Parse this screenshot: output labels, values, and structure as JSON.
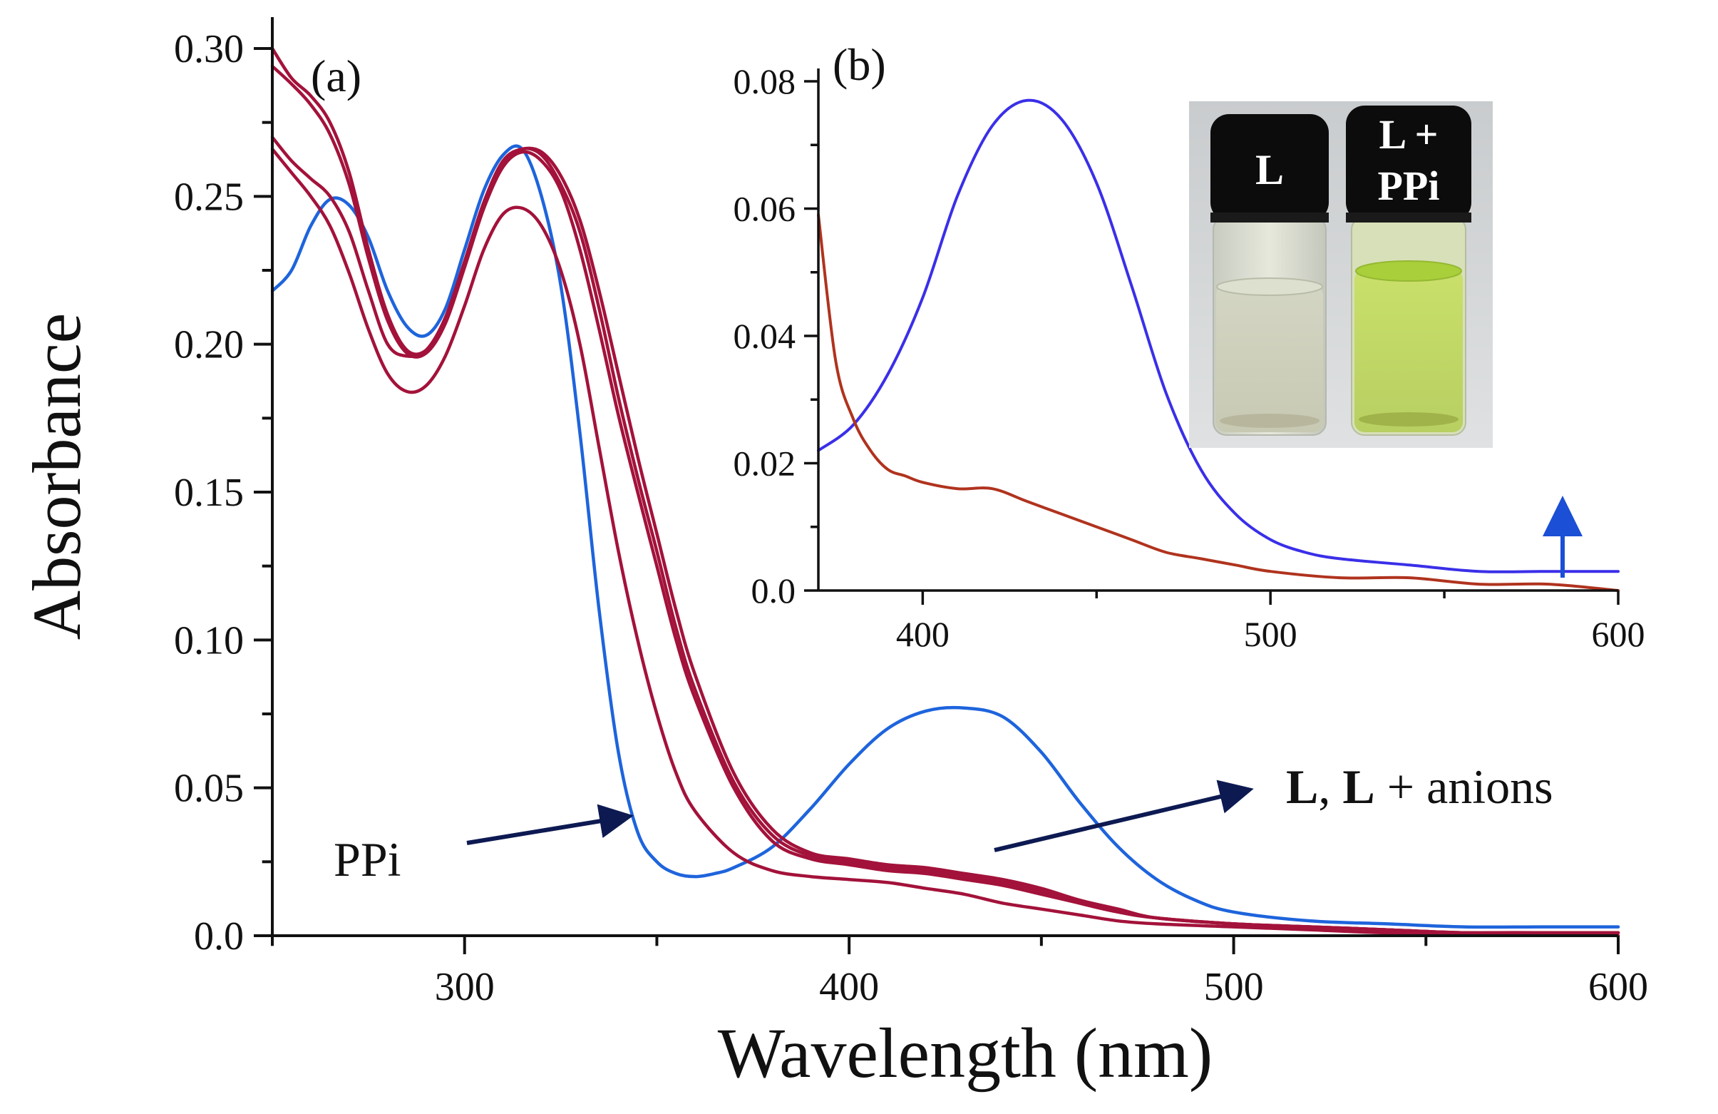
{
  "colors": {
    "ppi": "#1e64dc",
    "anions": "#a3123a",
    "inset_ppi": "#3a2fe8",
    "inset_l": "#b0331e",
    "arrow": "#0d1a52",
    "up_arrow": "#1a4fd6",
    "axis": "#111111"
  },
  "chart_data": [
    {
      "id": "panel-a",
      "panel_label": "(a)",
      "type": "line",
      "xlabel": "Wavelength (nm)",
      "ylabel": "Absorbance",
      "xlim": [
        250,
        600
      ],
      "ylim": [
        0,
        0.3
      ],
      "xticks": [
        300,
        400,
        500,
        600
      ],
      "xtick_labels": [
        "300",
        "400",
        "500",
        "600"
      ],
      "yticks": [
        0,
        0.05,
        0.1,
        0.15,
        0.2,
        0.25,
        0.3
      ],
      "ytick_labels": [
        "0.0",
        "0.05",
        "0.10",
        "0.15",
        "0.20",
        "0.25",
        "0.30"
      ],
      "annotations": [
        {
          "name": "ppi-annotation",
          "text": "PPi"
        },
        {
          "name": "anions-annotation",
          "text_bold": "L",
          "text_sep": ", ",
          "text_bold2": "L",
          "text_rest": " + anions"
        }
      ],
      "series": [
        {
          "name": "PPi",
          "color_key": "ppi",
          "x": [
            250,
            255,
            260,
            265,
            270,
            275,
            280,
            285,
            290,
            295,
            300,
            305,
            310,
            315,
            320,
            325,
            330,
            335,
            340,
            345,
            350,
            355,
            360,
            365,
            370,
            380,
            390,
            400,
            410,
            420,
            430,
            440,
            450,
            460,
            470,
            480,
            490,
            500,
            520,
            540,
            560,
            580,
            600
          ],
          "y": [
            0.218,
            0.225,
            0.24,
            0.249,
            0.247,
            0.236,
            0.218,
            0.206,
            0.203,
            0.212,
            0.232,
            0.252,
            0.264,
            0.266,
            0.25,
            0.22,
            0.17,
            0.11,
            0.062,
            0.035,
            0.025,
            0.021,
            0.02,
            0.021,
            0.023,
            0.03,
            0.043,
            0.058,
            0.07,
            0.076,
            0.077,
            0.074,
            0.062,
            0.045,
            0.03,
            0.019,
            0.012,
            0.008,
            0.005,
            0.004,
            0.003,
            0.003,
            0.003
          ]
        },
        {
          "name": "L + anion 1",
          "color_key": "anions",
          "x": [
            250,
            255,
            260,
            265,
            270,
            275,
            280,
            285,
            290,
            295,
            300,
            305,
            310,
            315,
            320,
            325,
            330,
            335,
            340,
            345,
            350,
            355,
            360,
            370,
            380,
            390,
            400,
            410,
            420,
            430,
            440,
            450,
            460,
            470,
            480,
            500,
            520,
            540,
            560,
            580,
            600
          ],
          "y": [
            0.3,
            0.29,
            0.284,
            0.275,
            0.258,
            0.232,
            0.21,
            0.198,
            0.198,
            0.208,
            0.227,
            0.246,
            0.26,
            0.265,
            0.262,
            0.252,
            0.232,
            0.205,
            0.176,
            0.15,
            0.125,
            0.1,
            0.08,
            0.05,
            0.032,
            0.026,
            0.024,
            0.022,
            0.021,
            0.019,
            0.017,
            0.014,
            0.011,
            0.008,
            0.006,
            0.004,
            0.003,
            0.002,
            0.001,
            0.001,
            0.001
          ]
        },
        {
          "name": "L + anion 2",
          "color_key": "anions",
          "x": [
            250,
            255,
            260,
            265,
            270,
            275,
            280,
            285,
            290,
            295,
            300,
            305,
            310,
            315,
            320,
            325,
            330,
            335,
            340,
            345,
            350,
            355,
            360,
            370,
            380,
            390,
            400,
            410,
            420,
            430,
            440,
            450,
            460,
            470,
            480,
            500,
            520,
            540,
            560,
            580,
            600
          ],
          "y": [
            0.294,
            0.288,
            0.281,
            0.271,
            0.254,
            0.229,
            0.208,
            0.197,
            0.197,
            0.207,
            0.226,
            0.246,
            0.261,
            0.266,
            0.264,
            0.254,
            0.238,
            0.212,
            0.182,
            0.155,
            0.13,
            0.104,
            0.083,
            0.052,
            0.034,
            0.027,
            0.025,
            0.023,
            0.022,
            0.02,
            0.018,
            0.015,
            0.011,
            0.008,
            0.006,
            0.004,
            0.003,
            0.002,
            0.001,
            0.001,
            0.001
          ]
        },
        {
          "name": "L + anion 3",
          "color_key": "anions",
          "x": [
            250,
            255,
            260,
            265,
            270,
            275,
            280,
            285,
            290,
            295,
            300,
            305,
            310,
            315,
            320,
            325,
            330,
            335,
            340,
            345,
            350,
            355,
            360,
            370,
            380,
            390,
            400,
            410,
            420,
            430,
            440,
            450,
            460,
            470,
            480,
            500,
            520,
            540,
            560,
            580,
            600
          ],
          "y": [
            0.27,
            0.262,
            0.256,
            0.25,
            0.238,
            0.218,
            0.2,
            0.196,
            0.198,
            0.209,
            0.228,
            0.248,
            0.262,
            0.266,
            0.265,
            0.257,
            0.242,
            0.218,
            0.19,
            0.162,
            0.136,
            0.11,
            0.088,
            0.055,
            0.036,
            0.028,
            0.026,
            0.024,
            0.023,
            0.021,
            0.019,
            0.016,
            0.012,
            0.009,
            0.006,
            0.004,
            0.003,
            0.002,
            0.001,
            0.001,
            0.001
          ]
        },
        {
          "name": "L",
          "color_key": "anions",
          "x": [
            250,
            255,
            260,
            265,
            270,
            275,
            280,
            285,
            290,
            295,
            300,
            305,
            310,
            315,
            320,
            325,
            330,
            335,
            340,
            345,
            350,
            355,
            360,
            370,
            380,
            390,
            400,
            410,
            420,
            430,
            440,
            450,
            460,
            470,
            480,
            500,
            520,
            540,
            560,
            580,
            600
          ],
          "y": [
            0.266,
            0.258,
            0.25,
            0.24,
            0.224,
            0.205,
            0.19,
            0.184,
            0.186,
            0.196,
            0.213,
            0.232,
            0.244,
            0.246,
            0.24,
            0.225,
            0.2,
            0.165,
            0.13,
            0.1,
            0.075,
            0.055,
            0.042,
            0.028,
            0.022,
            0.02,
            0.019,
            0.018,
            0.016,
            0.014,
            0.011,
            0.009,
            0.007,
            0.005,
            0.004,
            0.003,
            0.002,
            0.001,
            0.001,
            0.001,
            0.0
          ]
        }
      ]
    },
    {
      "id": "panel-b",
      "panel_label": "(b)",
      "type": "line",
      "xlim": [
        370,
        600
      ],
      "ylim": [
        0,
        0.08
      ],
      "xticks": [
        400,
        500,
        600
      ],
      "xtick_labels": [
        "400",
        "500",
        "600"
      ],
      "yticks": [
        0,
        0.02,
        0.04,
        0.06,
        0.08
      ],
      "ytick_labels": [
        "0.0",
        "0.02",
        "0.04",
        "0.06",
        "0.08"
      ],
      "series": [
        {
          "name": "L + PPi",
          "color_key": "inset_ppi",
          "x": [
            370,
            380,
            390,
            400,
            410,
            420,
            430,
            440,
            450,
            460,
            470,
            480,
            490,
            500,
            510,
            520,
            540,
            560,
            580,
            600
          ],
          "y": [
            0.022,
            0.026,
            0.034,
            0.046,
            0.062,
            0.073,
            0.077,
            0.074,
            0.064,
            0.048,
            0.031,
            0.019,
            0.012,
            0.008,
            0.006,
            0.005,
            0.004,
            0.003,
            0.003,
            0.003
          ]
        },
        {
          "name": "L",
          "color_key": "inset_l",
          "x": [
            370,
            375,
            380,
            385,
            390,
            395,
            400,
            410,
            420,
            430,
            440,
            450,
            460,
            470,
            480,
            490,
            500,
            520,
            540,
            560,
            580,
            600
          ],
          "y": [
            0.059,
            0.036,
            0.027,
            0.022,
            0.019,
            0.018,
            0.017,
            0.016,
            0.016,
            0.014,
            0.012,
            0.01,
            0.008,
            0.006,
            0.005,
            0.004,
            0.003,
            0.002,
            0.002,
            0.001,
            0.001,
            0.0
          ]
        }
      ],
      "photo": {
        "vials": [
          {
            "name": "vial-l",
            "lines": [
              "L"
            ]
          },
          {
            "name": "vial-l-ppi",
            "lines": [
              "L +",
              "PPi"
            ]
          }
        ]
      }
    }
  ]
}
